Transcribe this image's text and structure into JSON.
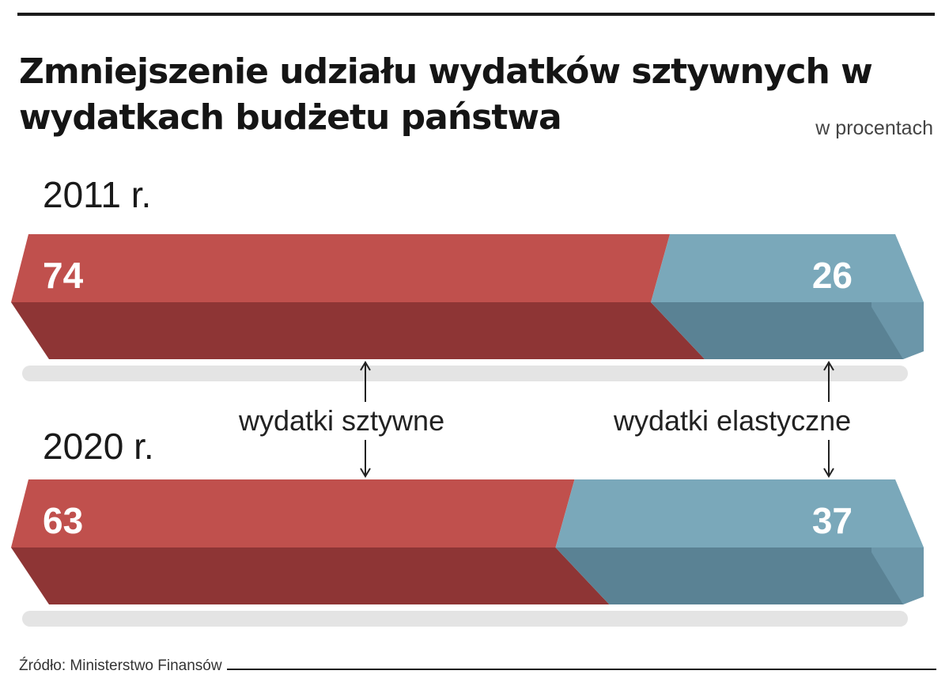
{
  "title": "Zmniejszenie udziału wydatków sztywnych w wydatkach budżetu państwa",
  "unit": "w procentach",
  "source": "Źródło: Ministerstwo Finansów",
  "colors": {
    "rigid_top": "#c0504d",
    "rigid_side": "#8e3535",
    "flexible_top": "#7aa8ba",
    "flexible_side": "#5a8294",
    "shadow": "#e4e4e4"
  },
  "chart_data": {
    "type": "bar",
    "orientation": "horizontal-stacked-100",
    "categories": [
      "2011 r.",
      "2020 r."
    ],
    "series": [
      {
        "name": "wydatki sztywne",
        "values": [
          74,
          63
        ]
      },
      {
        "name": "wydatki elastyczne",
        "values": [
          26,
          37
        ]
      }
    ],
    "xlim": [
      0,
      100
    ]
  }
}
